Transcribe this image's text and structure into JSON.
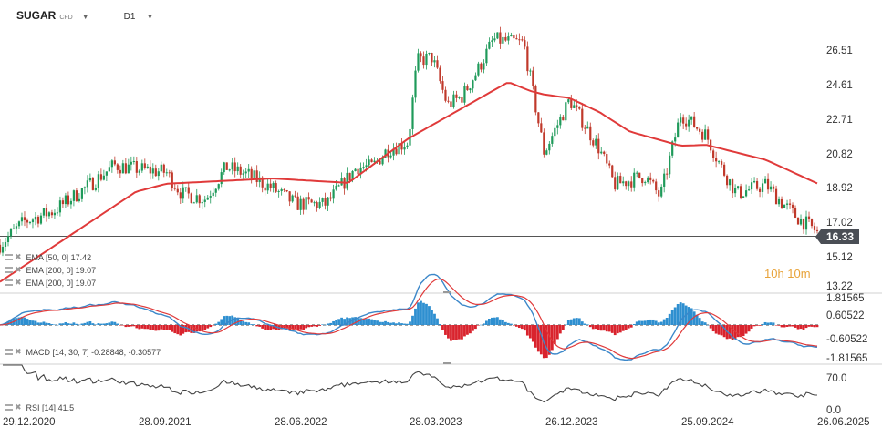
{
  "header": {
    "symbol": "SUGAR",
    "instrument_type": "CFD",
    "timeframe": "D1"
  },
  "current_price": "16.33",
  "countdown": "10h 10m",
  "indicators": {
    "ema50_label": "EMA [50, 0]",
    "ema50_value": "17.42",
    "ema200a_label": "EMA [200, 0]",
    "ema200a_value": "19.07",
    "ema200b_label": "EMA [200, 0]",
    "ema200b_value": "19.07",
    "macd_label": "MACD [14, 30, 7]",
    "macd_value": "-0.28848,",
    "macd_signal": "-0.30577",
    "rsi_label": "RSI [14]",
    "rsi_value": "41.5"
  },
  "price_axis_labels": [
    "26.51",
    "24.61",
    "22.71",
    "20.82",
    "18.92",
    "17.02",
    "15.12",
    "13.22"
  ],
  "macd_axis_labels": [
    "1.81565",
    "0.60522",
    "-0.60522",
    "-1.81565"
  ],
  "rsi_axis_labels": [
    "70.0",
    "0.0"
  ],
  "date_labels": [
    "29.12.2020",
    "28.09.2021",
    "28.06.2022",
    "28.03.2023",
    "26.12.2023",
    "25.09.2024",
    "26.06.2025"
  ],
  "colors": {
    "up": "#1f9a5a",
    "down": "#c0392b",
    "ema": "#e03a3a",
    "macd_line": "#3b87c9",
    "signal_line": "#e03a3a",
    "hist_pos": "#2e8fd0",
    "hist_neg": "#d9232d",
    "rsi": "#444444",
    "price_line": "#555555"
  },
  "chart_data": {
    "type": "candlestick",
    "timeframe": "D1",
    "x_range": [
      "29.12.2020",
      "26.06.2025"
    ],
    "ylim": [
      13.22,
      27.5
    ],
    "last_price": 16.33,
    "close_path": [
      [
        "29.12.2020",
        15.6
      ],
      [
        "15.02.2021",
        16.9
      ],
      [
        "15.04.2021",
        17.5
      ],
      [
        "28.06.2021",
        19.0
      ],
      [
        "15.08.2021",
        20.1
      ],
      [
        "28.09.2021",
        19.9
      ],
      [
        "28.11.2021",
        19.7
      ],
      [
        "28.12.2021",
        18.5
      ],
      [
        "15.02.2022",
        18.2
      ],
      [
        "28.03.2022",
        20.0
      ],
      [
        "15.05.2022",
        19.5
      ],
      [
        "28.06.2022",
        18.8
      ],
      [
        "15.08.2022",
        17.9
      ],
      [
        "15.10.2022",
        17.9
      ],
      [
        "15.12.2022",
        20.0
      ],
      [
        "15.01.2023",
        20.0
      ],
      [
        "15.02.2023",
        21.0
      ],
      [
        "28.03.2023",
        21.4
      ],
      [
        "15.04.2023",
        26.0
      ],
      [
        "15.05.2023",
        26.2
      ],
      [
        "15.06.2023",
        23.5
      ],
      [
        "15.07.2023",
        24.0
      ],
      [
        "15.08.2023",
        25.5
      ],
      [
        "15.09.2023",
        27.2
      ],
      [
        "15.11.2023",
        27.0
      ],
      [
        "26.12.2023",
        20.8
      ],
      [
        "15.01.2024",
        22.0
      ],
      [
        "15.02.2024",
        23.8
      ],
      [
        "15.04.2024",
        21.0
      ],
      [
        "15.05.2024",
        19.0
      ],
      [
        "15.07.2024",
        19.5
      ],
      [
        "15.08.2024",
        18.3
      ],
      [
        "25.09.2024",
        23.0
      ],
      [
        "15.11.2024",
        21.8
      ],
      [
        "15.12.2024",
        20.0
      ],
      [
        "15.01.2025",
        18.5
      ],
      [
        "15.03.2025",
        19.0
      ],
      [
        "15.04.2025",
        18.0
      ],
      [
        "15.05.2025",
        17.2
      ],
      [
        "26.06.2025",
        16.33
      ]
    ],
    "ema": [
      [
        "29.12.2020",
        13.5
      ],
      [
        "28.09.2021",
        18.6
      ],
      [
        "28.11.2021",
        19.05
      ],
      [
        "28.06.2022",
        19.35
      ],
      [
        "28.11.2022",
        19.1
      ],
      [
        "28.03.2023",
        21.6
      ],
      [
        "15.10.2023",
        24.8
      ],
      [
        "28.11.2023",
        24.3
      ],
      [
        "26.12.2023",
        24.1
      ],
      [
        "15.02.2024",
        23.9
      ],
      [
        "15.04.2024",
        23.1
      ],
      [
        "15.06.2024",
        22.0
      ],
      [
        "25.09.2024",
        21.2
      ],
      [
        "15.11.2024",
        21.25
      ],
      [
        "15.03.2025",
        20.4
      ],
      [
        "26.06.2025",
        19.07
      ]
    ],
    "macd": {
      "macd": -0.28848,
      "signal": -0.30577
    },
    "rsi": {
      "value": 41.5
    }
  }
}
